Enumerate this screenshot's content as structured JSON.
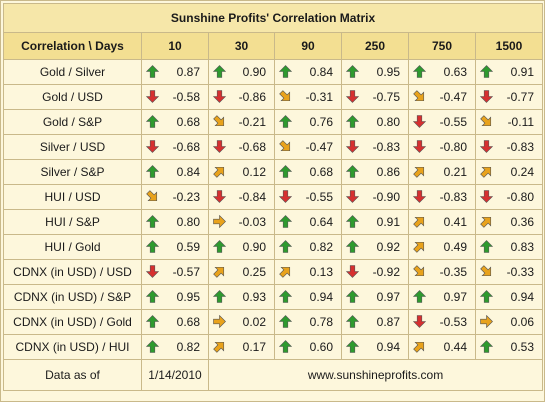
{
  "title": "Sunshine Profits' Correlation Matrix",
  "header": {
    "corner": "Correlation \\ Days",
    "days": [
      "10",
      "30",
      "90",
      "250",
      "750",
      "1500"
    ]
  },
  "colors": {
    "up": "#2e9a2e",
    "down": "#d63030",
    "flat": "#e8a21c"
  },
  "rows": [
    {
      "label": "Gold / Silver",
      "cells": [
        {
          "dir": "up",
          "value": "0.87"
        },
        {
          "dir": "up",
          "value": "0.90"
        },
        {
          "dir": "up",
          "value": "0.84"
        },
        {
          "dir": "up",
          "value": "0.95"
        },
        {
          "dir": "up",
          "value": "0.63"
        },
        {
          "dir": "up",
          "value": "0.91"
        }
      ]
    },
    {
      "label": "Gold / USD",
      "cells": [
        {
          "dir": "down",
          "value": "-0.58"
        },
        {
          "dir": "down",
          "value": "-0.86"
        },
        {
          "dir": "down-right",
          "value": "-0.31"
        },
        {
          "dir": "down",
          "value": "-0.75"
        },
        {
          "dir": "down-right",
          "value": "-0.47"
        },
        {
          "dir": "down",
          "value": "-0.77"
        }
      ]
    },
    {
      "label": "Gold / S&P",
      "cells": [
        {
          "dir": "up",
          "value": "0.68"
        },
        {
          "dir": "down-right",
          "value": "-0.21"
        },
        {
          "dir": "up",
          "value": "0.76"
        },
        {
          "dir": "up",
          "value": "0.80"
        },
        {
          "dir": "down",
          "value": "-0.55"
        },
        {
          "dir": "down-right",
          "value": "-0.11"
        }
      ]
    },
    {
      "label": "Silver / USD",
      "cells": [
        {
          "dir": "down",
          "value": "-0.68"
        },
        {
          "dir": "down",
          "value": "-0.68"
        },
        {
          "dir": "down-right",
          "value": "-0.47"
        },
        {
          "dir": "down",
          "value": "-0.83"
        },
        {
          "dir": "down",
          "value": "-0.80"
        },
        {
          "dir": "down",
          "value": "-0.83"
        }
      ]
    },
    {
      "label": "Silver / S&P",
      "cells": [
        {
          "dir": "up",
          "value": "0.84"
        },
        {
          "dir": "up-right",
          "value": "0.12"
        },
        {
          "dir": "up",
          "value": "0.68"
        },
        {
          "dir": "up",
          "value": "0.86"
        },
        {
          "dir": "up-right",
          "value": "0.21"
        },
        {
          "dir": "up-right",
          "value": "0.24"
        }
      ]
    },
    {
      "label": "HUI / USD",
      "cells": [
        {
          "dir": "down-right",
          "value": "-0.23"
        },
        {
          "dir": "down",
          "value": "-0.84"
        },
        {
          "dir": "down",
          "value": "-0.55"
        },
        {
          "dir": "down",
          "value": "-0.90"
        },
        {
          "dir": "down",
          "value": "-0.83"
        },
        {
          "dir": "down",
          "value": "-0.80"
        }
      ]
    },
    {
      "label": "HUI / S&P",
      "cells": [
        {
          "dir": "up",
          "value": "0.80"
        },
        {
          "dir": "right",
          "value": "-0.03"
        },
        {
          "dir": "up",
          "value": "0.64"
        },
        {
          "dir": "up",
          "value": "0.91"
        },
        {
          "dir": "up-right",
          "value": "0.41"
        },
        {
          "dir": "up-right",
          "value": "0.36"
        }
      ]
    },
    {
      "label": "HUI / Gold",
      "cells": [
        {
          "dir": "up",
          "value": "0.59"
        },
        {
          "dir": "up",
          "value": "0.90"
        },
        {
          "dir": "up",
          "value": "0.82"
        },
        {
          "dir": "up",
          "value": "0.92"
        },
        {
          "dir": "up-right",
          "value": "0.49"
        },
        {
          "dir": "up",
          "value": "0.83"
        }
      ]
    },
    {
      "label": "CDNX (in USD) / USD",
      "cells": [
        {
          "dir": "down",
          "value": "-0.57"
        },
        {
          "dir": "up-right",
          "value": "0.25"
        },
        {
          "dir": "up-right",
          "value": "0.13"
        },
        {
          "dir": "down",
          "value": "-0.92"
        },
        {
          "dir": "down-right",
          "value": "-0.35"
        },
        {
          "dir": "down-right",
          "value": "-0.33"
        }
      ]
    },
    {
      "label": "CDNX (in USD) / S&P",
      "cells": [
        {
          "dir": "up",
          "value": "0.95"
        },
        {
          "dir": "up",
          "value": "0.93"
        },
        {
          "dir": "up",
          "value": "0.94"
        },
        {
          "dir": "up",
          "value": "0.97"
        },
        {
          "dir": "up",
          "value": "0.97"
        },
        {
          "dir": "up",
          "value": "0.94"
        }
      ]
    },
    {
      "label": "CDNX (in USD) / Gold",
      "cells": [
        {
          "dir": "up",
          "value": "0.68"
        },
        {
          "dir": "right",
          "value": "0.02"
        },
        {
          "dir": "up",
          "value": "0.78"
        },
        {
          "dir": "up",
          "value": "0.87"
        },
        {
          "dir": "down",
          "value": "-0.53"
        },
        {
          "dir": "right",
          "value": "0.06"
        }
      ]
    },
    {
      "label": "CDNX (in USD) / HUI",
      "cells": [
        {
          "dir": "up",
          "value": "0.82"
        },
        {
          "dir": "up-right",
          "value": "0.17"
        },
        {
          "dir": "up",
          "value": "0.60"
        },
        {
          "dir": "up",
          "value": "0.94"
        },
        {
          "dir": "up-right",
          "value": "0.44"
        },
        {
          "dir": "up",
          "value": "0.53"
        }
      ]
    }
  ],
  "footer": {
    "label": "Data as of",
    "date": "1/14/2010",
    "site": "www.sunshineprofits.com"
  }
}
